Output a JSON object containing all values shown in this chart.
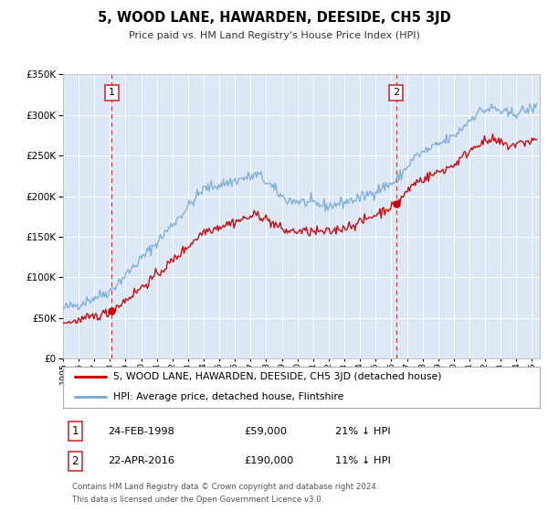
{
  "title": "5, WOOD LANE, HAWARDEN, DEESIDE, CH5 3JD",
  "subtitle": "Price paid vs. HM Land Registry's House Price Index (HPI)",
  "bg_color": "#ffffff",
  "plot_bg_color": "#dce8f5",
  "grid_color": "#ffffff",
  "xlim": [
    1995,
    2025.5
  ],
  "ylim": [
    0,
    350000
  ],
  "yticks": [
    0,
    50000,
    100000,
    150000,
    200000,
    250000,
    300000,
    350000
  ],
  "xticks": [
    1995,
    1996,
    1997,
    1998,
    1999,
    2000,
    2001,
    2002,
    2003,
    2004,
    2005,
    2006,
    2007,
    2008,
    2009,
    2010,
    2011,
    2012,
    2013,
    2014,
    2015,
    2016,
    2017,
    2018,
    2019,
    2020,
    2021,
    2022,
    2023,
    2024,
    2025
  ],
  "sale1_date": 1998.12,
  "sale1_price": 59000,
  "sale1_label": "1",
  "sale2_date": 2016.3,
  "sale2_price": 190000,
  "sale2_label": "2",
  "red_line_color": "#cc0000",
  "blue_line_color": "#7dadd4",
  "marker_color": "#cc0000",
  "dashed_line_color": "#cc3333",
  "legend_label_red": "5, WOOD LANE, HAWARDEN, DEESIDE, CH5 3JD (detached house)",
  "legend_label_blue": "HPI: Average price, detached house, Flintshire",
  "table_row1": [
    "1",
    "24-FEB-1998",
    "£59,000",
    "21% ↓ HPI"
  ],
  "table_row2": [
    "2",
    "22-APR-2016",
    "£190,000",
    "11% ↓ HPI"
  ],
  "footer_line1": "Contains HM Land Registry data © Crown copyright and database right 2024.",
  "footer_line2": "This data is licensed under the Open Government Licence v3.0."
}
